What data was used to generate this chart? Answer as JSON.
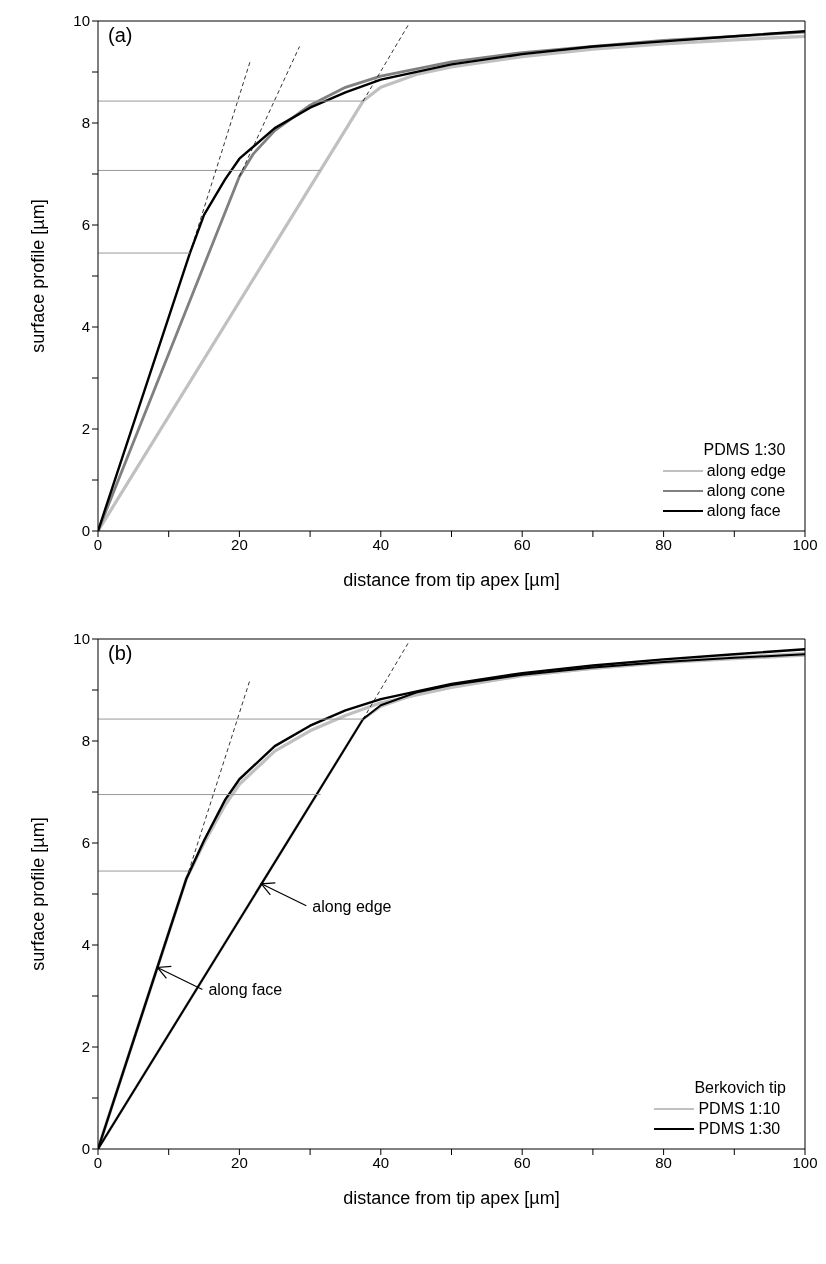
{
  "chart_data": [
    {
      "type": "line",
      "title": "(a)",
      "xlabel": "distance from tip apex [µm]",
      "ylabel": "surface profile [µm]",
      "legend_title": "PDMS 1:30",
      "legend": "bottom right",
      "xlim": [
        0,
        100
      ],
      "ylim": [
        0,
        10
      ],
      "xticks": [
        0,
        {
          "value": 10,
          "label": null
        },
        20,
        {
          "value": 30,
          "label": null
        },
        40,
        {
          "value": 50,
          "label": null
        },
        60,
        {
          "value": 70,
          "label": null
        },
        80,
        {
          "value": 90,
          "label": null
        },
        100
      ],
      "yticks": [
        0,
        {
          "value": 1,
          "label": null
        },
        2,
        {
          "value": 3,
          "label": null
        },
        4,
        {
          "value": 5,
          "label": null
        },
        6,
        {
          "value": 7,
          "label": null
        },
        8,
        {
          "value": 9,
          "label": null
        },
        10
      ],
      "series": [
        {
          "name": "along edge",
          "color": "#c0c0c0",
          "x": [
            0,
            37.5,
            40,
            45,
            50,
            60,
            70,
            80,
            90,
            100
          ],
          "values": [
            0,
            8.43,
            8.7,
            8.95,
            9.1,
            9.3,
            9.45,
            9.55,
            9.63,
            9.7
          ]
        },
        {
          "name": "along cone",
          "color": "#808080",
          "x": [
            0,
            20,
            22,
            25,
            30,
            35,
            40,
            50,
            60,
            70,
            80,
            90,
            100
          ],
          "values": [
            0,
            6.95,
            7.4,
            7.85,
            8.35,
            8.7,
            8.92,
            9.2,
            9.38,
            9.5,
            9.62,
            9.7,
            9.78
          ]
        },
        {
          "name": "along face",
          "color": "#000000",
          "x": [
            0,
            13,
            15,
            18,
            20,
            25,
            30,
            35,
            40,
            50,
            60,
            70,
            80,
            90,
            100
          ],
          "values": [
            0,
            5.45,
            6.2,
            6.9,
            7.3,
            7.9,
            8.3,
            8.6,
            8.85,
            9.15,
            9.35,
            9.5,
            9.6,
            9.7,
            9.8
          ]
        },
        {
          "color": "#999999",
          "x": [
            0,
            13
          ],
          "values": [
            5.45,
            5.45
          ]
        },
        {
          "color": "#999999",
          "x": [
            0,
            31.5
          ],
          "values": [
            7.07,
            7.07
          ]
        },
        {
          "color": "#999999",
          "x": [
            0,
            37.5
          ],
          "values": [
            8.43,
            8.43
          ]
        },
        {
          "color": "#000000",
          "line_style": "dashed",
          "x": [
            13,
            21.5
          ],
          "values": [
            5.45,
            9.2
          ]
        },
        {
          "color": "#000000",
          "line_style": "dashed",
          "x": [
            20,
            28.5
          ],
          "values": [
            6.95,
            9.5
          ]
        },
        {
          "color": "#000000",
          "line_style": "dashed",
          "x": [
            37.5,
            44
          ],
          "values": [
            8.43,
            9.95
          ]
        }
      ]
    },
    {
      "type": "line",
      "title": "(b)",
      "xlabel": "distance from tip apex [µm]",
      "ylabel": "surface profile [µm]",
      "legend_title": "Berkovich tip",
      "legend": "bottom right",
      "xlim": [
        0,
        100
      ],
      "ylim": [
        0,
        10
      ],
      "xticks": [
        0,
        {
          "value": 10,
          "label": null
        },
        20,
        {
          "value": 30,
          "label": null
        },
        40,
        {
          "value": 50,
          "label": null
        },
        60,
        {
          "value": 70,
          "label": null
        },
        80,
        {
          "value": 90,
          "label": null
        },
        100
      ],
      "yticks": [
        0,
        {
          "value": 1,
          "label": null
        },
        2,
        {
          "value": 3,
          "label": null
        },
        4,
        {
          "value": 5,
          "label": null
        },
        6,
        {
          "value": 7,
          "label": null
        },
        8,
        {
          "value": 9,
          "label": null
        },
        10
      ],
      "annotations": [
        {
          "text": "along edge",
          "x": 23.1,
          "y": 5.2
        },
        {
          "text": "along face",
          "x": 8.4,
          "y": 3.56
        }
      ],
      "series": [
        {
          "name": "PDMS 1:10",
          "color": "#c0c0c0",
          "x": [
            0,
            12.5,
            15,
            18,
            20,
            25,
            30,
            35,
            40,
            50,
            60,
            70,
            80,
            90,
            100
          ],
          "values": [
            0,
            5.3,
            6.0,
            6.75,
            7.15,
            7.8,
            8.2,
            8.5,
            8.75,
            9.05,
            9.28,
            9.43,
            9.55,
            9.64,
            9.72
          ]
        },
        {
          "color": "#c0c0c0",
          "x": [
            0,
            37.5,
            40,
            45,
            50,
            60,
            70,
            80,
            90,
            100
          ],
          "values": [
            0,
            8.43,
            8.68,
            8.92,
            9.08,
            9.28,
            9.42,
            9.53,
            9.61,
            9.68
          ]
        },
        {
          "name": "PDMS 1:30",
          "color": "#000000",
          "x": [
            0,
            12.5,
            15,
            18,
            20,
            25,
            30,
            35,
            40,
            50,
            60,
            70,
            80,
            90,
            100
          ],
          "values": [
            0,
            5.3,
            6.05,
            6.85,
            7.25,
            7.9,
            8.3,
            8.6,
            8.82,
            9.12,
            9.33,
            9.48,
            9.6,
            9.7,
            9.8
          ]
        },
        {
          "color": "#000000",
          "x": [
            0,
            37.5,
            40,
            45,
            50,
            60,
            70,
            80,
            90,
            100
          ],
          "values": [
            0,
            8.43,
            8.7,
            8.95,
            9.1,
            9.3,
            9.44,
            9.55,
            9.63,
            9.7
          ]
        },
        {
          "color": "#999999",
          "x": [
            0,
            13
          ],
          "values": [
            5.45,
            5.45
          ]
        },
        {
          "color": "#999999",
          "x": [
            0,
            31.5
          ],
          "values": [
            6.95,
            6.95
          ]
        },
        {
          "color": "#999999",
          "x": [
            0,
            37.5
          ],
          "values": [
            8.43,
            8.43
          ]
        },
        {
          "color": "#000000",
          "line_style": "dashed",
          "x": [
            12.5,
            21.5
          ],
          "values": [
            5.3,
            9.2
          ]
        },
        {
          "color": "#000000",
          "line_style": "dashed",
          "x": [
            37.5,
            44
          ],
          "values": [
            8.43,
            9.95
          ]
        }
      ]
    }
  ]
}
